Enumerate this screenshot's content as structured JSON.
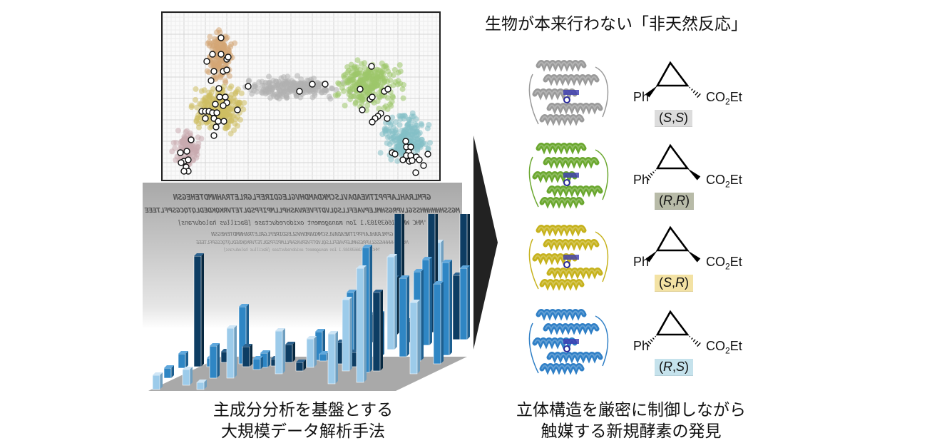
{
  "left_panel": {
    "pca_plot": {
      "clusters": [
        {
          "name": "orange",
          "color": "#d4a574"
        },
        {
          "name": "yellow",
          "color": "#cdbe63"
        },
        {
          "name": "pink",
          "color": "#c9a9ae"
        },
        {
          "name": "gray",
          "color": "#b0b0b0"
        },
        {
          "name": "green",
          "color": "#9cc76a"
        },
        {
          "name": "teal",
          "color": "#84c0c6"
        }
      ],
      "highlight_marker": "white-circle-black-outline"
    },
    "sequence_lines": [
      "GFMLRAHLAFPPITNEADAVLSCMKDAMDHVGLEGDIREFLGRLETRAHNMDTEHEGSN",
      "MGSSHHHHHHSSGLVPRGSHMLEPVAEFLLSQLVDTFVERVASHPLLMPIFPSDLTETVRKQKDEDLQTQCGSPFLTEEE",
      "'MHC WP_016639103.1 Ion management oxidoreductase [Bacillus halodurans]",
      "GFMLRAHLAFPPITNEADAVLSCMKDAMDHVGLEGDIREFLGRLETRAHNMDTEHEGSN",
      "MGSSHHHHHHSSGLVPRGSHMLEPVAEFLLSQLVDTFVERVASHPLLMPIFPSDLTETVRKQKDEDLQTQCGSPFLTEEE",
      "'MHC WP_016639103.1 Ion management oxidoreductase [Bacillus halodurans]"
    ],
    "caption_line1": "主成分分析を基盤とする",
    "caption_line2": "大規模データ解析手法"
  },
  "right_panel": {
    "title": "生物が本来行わない「非天然反応」",
    "enzymes": [
      {
        "protein_color": "#9a9a9a",
        "ph_bond": "wedge",
        "co_bond": "hash",
        "ph_label": "Ph",
        "co_label": "CO",
        "co_sub": "2",
        "co_tail": "Et",
        "stereo_a": "S",
        "stereo_b": "S",
        "stereo_bg": "#dcdcdc"
      },
      {
        "protein_color": "#6aa72e",
        "ph_bond": "hash",
        "co_bond": "wedge",
        "ph_label": "Ph",
        "co_label": "CO",
        "co_sub": "2",
        "co_tail": "Et",
        "stereo_a": "R",
        "stereo_b": "R",
        "stereo_bg": "#b8bba8"
      },
      {
        "protein_color": "#c6b21c",
        "ph_bond": "wedge",
        "co_bond": "wedge",
        "ph_label": "Ph",
        "co_label": "CO",
        "co_sub": "2",
        "co_tail": "Et",
        "stereo_a": "S",
        "stereo_b": "R",
        "stereo_bg": "#f3e2a4"
      },
      {
        "protein_color": "#2f7fc6",
        "ph_bond": "hash",
        "co_bond": "hash",
        "ph_label": "Ph",
        "co_label": "CO",
        "co_sub": "2",
        "co_tail": "Et",
        "stereo_a": "R",
        "stereo_b": "S",
        "stereo_bg": "#c5e2ec"
      }
    ],
    "caption_line1": "立体構造を厳密に制御しながら",
    "caption_line2": "触媒する新規酵素の発見"
  },
  "arrow": {
    "direction": "right",
    "color": "#222222"
  },
  "colors": {
    "bar_light": "#9ccbea",
    "bar_mid": "#2f86c4",
    "bar_dark": "#0d3d63",
    "floor": "#a9a9a9"
  }
}
